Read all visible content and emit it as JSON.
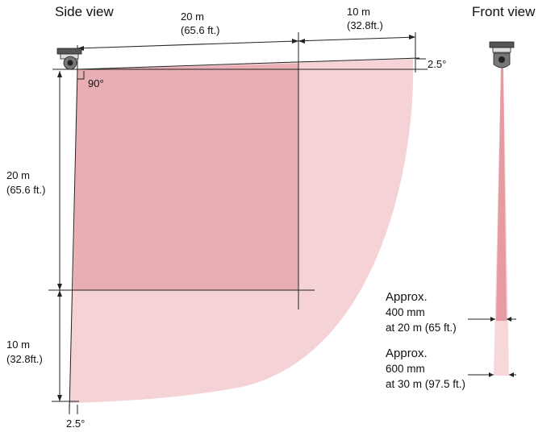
{
  "titles": {
    "side_view": "Side view",
    "front_view": "Front view"
  },
  "dimensions": {
    "top_near_m": "20 m",
    "top_near_ft": "(65.6 ft.)",
    "top_far_m": "10 m",
    "top_far_ft": "(32.8ft.)",
    "left_near_m": "20 m",
    "left_near_ft": "(65.6 ft.)",
    "left_far_m": "10 m",
    "left_far_ft": "(32.8ft.)",
    "angle_top": "2.5°",
    "angle_bottom": "2.5°",
    "angle_corner": "90°"
  },
  "front_notes": {
    "near_line1": "Approx.",
    "near_line2": "400 mm",
    "near_line3": "at 20 m (65 ft.)",
    "far_line1": "Approx.",
    "far_line2": "600 mm",
    "far_line3": "at 30 m (97.5 ft.)"
  },
  "colors": {
    "zone_near": "#e8aeb4",
    "zone_far": "#f4d2d5",
    "beam_light": "#f6d8da",
    "beam_dark": "#e69aa2"
  }
}
